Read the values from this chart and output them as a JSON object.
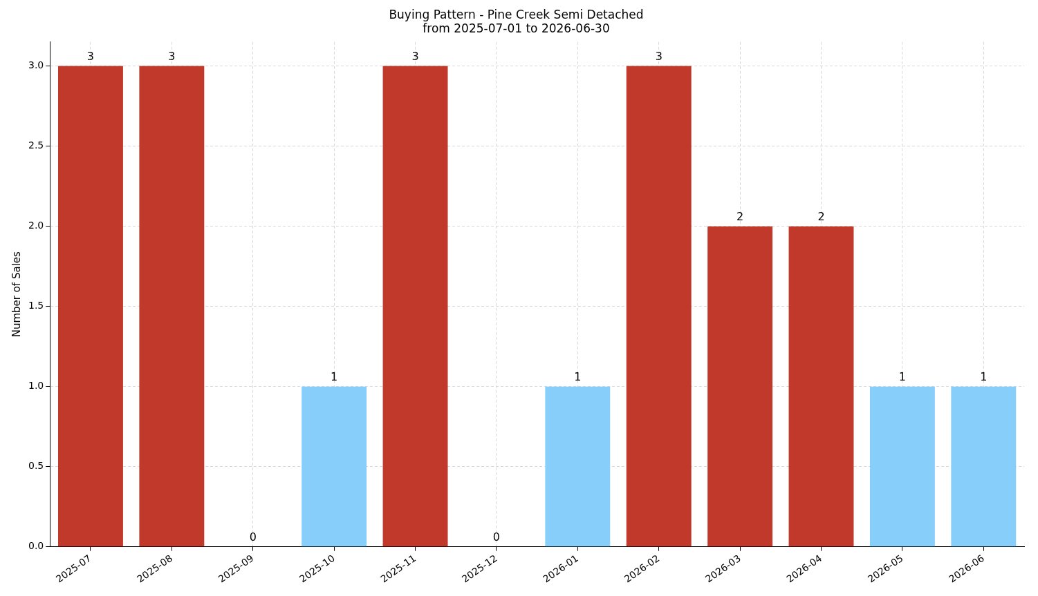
{
  "chart_data": {
    "type": "bar",
    "title": "Buying Pattern - Pine Creek Semi Detached\nfrom 2025-07-01 to 2026-06-30",
    "ylabel": "Number of Sales",
    "categories": [
      "2025-07",
      "2025-08",
      "2025-09",
      "2025-10",
      "2025-11",
      "2025-12",
      "2026-01",
      "2026-02",
      "2026-03",
      "2026-04",
      "2026-05",
      "2026-06"
    ],
    "values": [
      3,
      3,
      0,
      1,
      3,
      0,
      1,
      3,
      2,
      2,
      1,
      1
    ],
    "colors": [
      "#c0392b",
      "#c0392b",
      "#87cefa",
      "#87cefa",
      "#c0392b",
      "#87cefa",
      "#87cefa",
      "#c0392b",
      "#c0392b",
      "#c0392b",
      "#87cefa",
      "#87cefa"
    ],
    "ylim": [
      0,
      3.15
    ],
    "yticks": [
      {
        "value": 0,
        "label": "0.0"
      },
      {
        "value": 0.5,
        "label": "0.5"
      },
      {
        "value": 1,
        "label": "1.0"
      },
      {
        "value": 1.5,
        "label": "1.5"
      },
      {
        "value": 2,
        "label": "2.0"
      },
      {
        "value": 2.5,
        "label": "2.5"
      },
      {
        "value": 3,
        "label": "3.0"
      }
    ],
    "grid": true,
    "legend": false,
    "data_labels": true
  }
}
